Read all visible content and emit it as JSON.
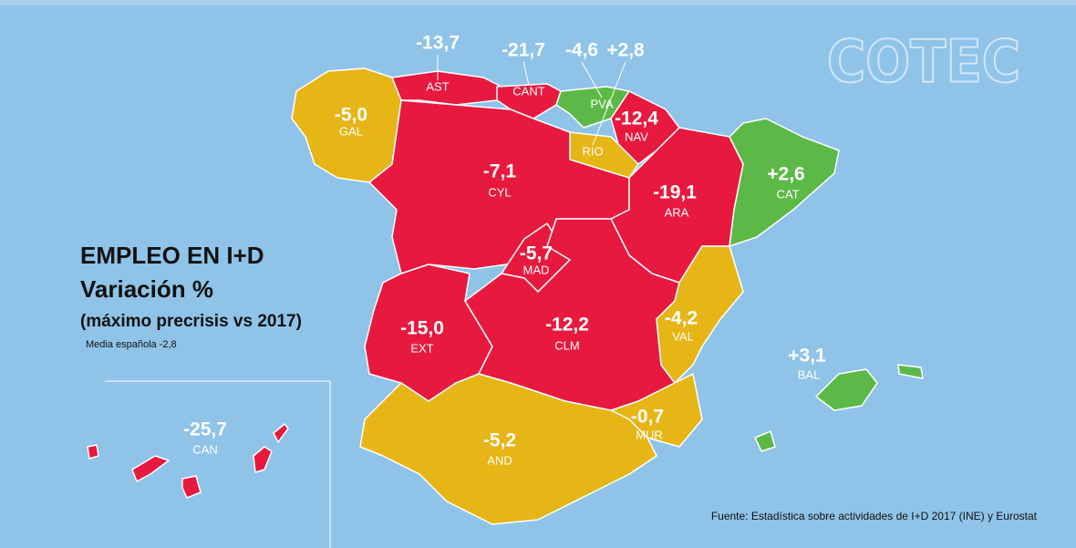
{
  "title": [
    "EMPLEO EN I+D",
    "Variación %"
  ],
  "subtitle": "(máximo precrisis vs 2017)",
  "note": "Media española -2,8",
  "source": "Fuente: Estadística sobre actividades de I+D 2017 (INE) y Eurostat",
  "logo": "COTEC",
  "regions": [
    {
      "code": "GAL",
      "value": "-5,0",
      "color": "#e6b516"
    },
    {
      "code": "AST",
      "value": "-13,7",
      "color": "#e8193f"
    },
    {
      "code": "CANT",
      "value": "-21,7",
      "color": "#e8193f"
    },
    {
      "code": "PVA",
      "value": "-4,6",
      "color": "#5cb947"
    },
    {
      "code": "NAV",
      "value": "-12,4",
      "color": "#e8193f"
    },
    {
      "code": "RIO",
      "value": "+2,8",
      "color": "#e6b516"
    },
    {
      "code": "CYL",
      "value": "-7,1",
      "color": "#e8193f"
    },
    {
      "code": "ARA",
      "value": "-19,1",
      "color": "#e8193f"
    },
    {
      "code": "CAT",
      "value": "+2,6",
      "color": "#5cb947"
    },
    {
      "code": "MAD",
      "value": "-5,7",
      "color": "#e8193f"
    },
    {
      "code": "EXT",
      "value": "-15,0",
      "color": "#e8193f"
    },
    {
      "code": "CLM",
      "value": "-12,2",
      "color": "#e8193f"
    },
    {
      "code": "VAL",
      "value": "-4,2",
      "color": "#e6b516"
    },
    {
      "code": "MUR",
      "value": "-0,7",
      "color": "#e6b516"
    },
    {
      "code": "AND",
      "value": "-5,2",
      "color": "#e6b516"
    },
    {
      "code": "BAL",
      "value": "+3,1",
      "color": "#5cb947"
    },
    {
      "code": "CAN",
      "value": "-25,7",
      "color": "#e8193f"
    }
  ]
}
